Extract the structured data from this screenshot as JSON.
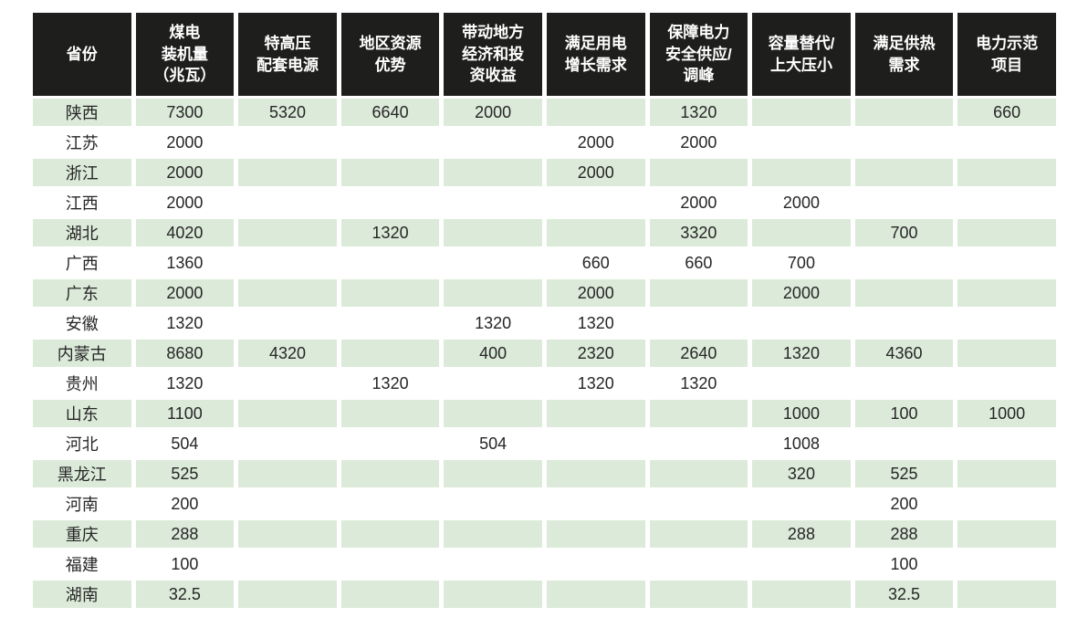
{
  "colors": {
    "header_bg": "#1e1e1c",
    "row_alt_bg": "#dcebd9",
    "header_text": "#ffffff",
    "body_text": "#262626"
  },
  "chart_data": {
    "type": "table",
    "title": "",
    "columns": [
      "省份",
      "煤电\n装机量\n（兆瓦）",
      "特高压\n配套电源",
      "地区资源\n优势",
      "带动地方\n经济和投\n资收益",
      "满足用电\n增长需求",
      "保障电力\n安全供应/\n调峰",
      "容量替代/\n上大压小",
      "满足供热\n需求",
      "电力示范\n项目"
    ],
    "columns_plain": [
      "省份",
      "煤电装机量（兆瓦）",
      "特高压配套电源",
      "地区资源优势",
      "带动地方经济和投资收益",
      "满足用电增长需求",
      "保障电力安全供应/调峰",
      "容量替代/上大压小",
      "满足供热需求",
      "电力示范项目"
    ],
    "rows": [
      [
        "陕西",
        "7300",
        "5320",
        "6640",
        "2000",
        "",
        "1320",
        "",
        "",
        "660"
      ],
      [
        "江苏",
        "2000",
        "",
        "",
        "",
        "2000",
        "2000",
        "",
        "",
        ""
      ],
      [
        "浙江",
        "2000",
        "",
        "",
        "",
        "2000",
        "",
        "",
        "",
        ""
      ],
      [
        "江西",
        "2000",
        "",
        "",
        "",
        "",
        "2000",
        "2000",
        "",
        ""
      ],
      [
        "湖北",
        "4020",
        "",
        "1320",
        "",
        "",
        "3320",
        "",
        "700",
        ""
      ],
      [
        "广西",
        "1360",
        "",
        "",
        "",
        "660",
        "660",
        "700",
        "",
        ""
      ],
      [
        "广东",
        "2000",
        "",
        "",
        "",
        "2000",
        "",
        "2000",
        "",
        ""
      ],
      [
        "安徽",
        "1320",
        "",
        "",
        "1320",
        "1320",
        "",
        "",
        "",
        ""
      ],
      [
        "内蒙古",
        "8680",
        "4320",
        "",
        "400",
        "2320",
        "2640",
        "1320",
        "4360",
        ""
      ],
      [
        "贵州",
        "1320",
        "",
        "1320",
        "",
        "1320",
        "1320",
        "",
        "",
        ""
      ],
      [
        "山东",
        "1100",
        "",
        "",
        "",
        "",
        "",
        "1000",
        "100",
        "1000"
      ],
      [
        "河北",
        "504",
        "",
        "",
        "504",
        "",
        "",
        "1008",
        "",
        ""
      ],
      [
        "黑龙江",
        "525",
        "",
        "",
        "",
        "",
        "",
        "320",
        "525",
        ""
      ],
      [
        "河南",
        "200",
        "",
        "",
        "",
        "",
        "",
        "",
        "200",
        ""
      ],
      [
        "重庆",
        "288",
        "",
        "",
        "",
        "",
        "",
        "288",
        "288",
        ""
      ],
      [
        "福建",
        "100",
        "",
        "",
        "",
        "",
        "",
        "",
        "100",
        ""
      ],
      [
        "湖南",
        "32.5",
        "",
        "",
        "",
        "",
        "",
        "",
        "32.5",
        ""
      ]
    ]
  }
}
